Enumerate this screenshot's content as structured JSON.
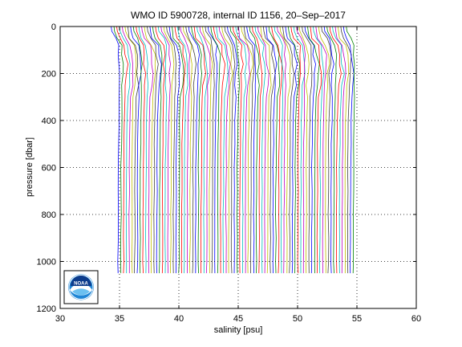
{
  "chart_data": {
    "type": "line",
    "title": "WMO ID 5900728, internal ID 1156, 20–Sep–2017",
    "xlabel": "salinity [psu]",
    "ylabel": "pressure [dbar]",
    "xlim": [
      30,
      60
    ],
    "ylim": [
      0,
      1200
    ],
    "y_reversed": true,
    "grid": true,
    "grid_style": "dotted",
    "x_ticks": [
      30,
      35,
      40,
      45,
      50,
      55,
      60
    ],
    "y_ticks": [
      0,
      200,
      400,
      600,
      800,
      1000,
      1200
    ],
    "x_tick_labels": [
      "30",
      "35",
      "40",
      "45",
      "50",
      "55",
      "60"
    ],
    "y_tick_labels": [
      "0",
      "200",
      "400",
      "600",
      "800",
      "1000",
      "1200"
    ],
    "series_style": "waterfall",
    "profile_count": 86,
    "profile_offset_psu": 0.233,
    "first_profile": {
      "pressure": [
        0,
        20,
        50,
        80,
        120,
        160,
        200,
        250,
        300,
        400,
        500,
        600,
        700,
        800,
        900,
        1000,
        1050
      ],
      "salinity": [
        34.3,
        34.35,
        34.6,
        34.95,
        35.05,
        35.1,
        35.1,
        35.05,
        35.0,
        34.95,
        34.92,
        34.9,
        34.9,
        34.89,
        34.89,
        34.88,
        34.88
      ]
    },
    "last_profile_surface_salinity": 54.3,
    "colors": [
      "#0000ff",
      "#008000",
      "#ff0000",
      "#00bfbf",
      "#bf00bf",
      "#bfbf00",
      "#404040"
    ],
    "logo_text": "NOAA"
  }
}
